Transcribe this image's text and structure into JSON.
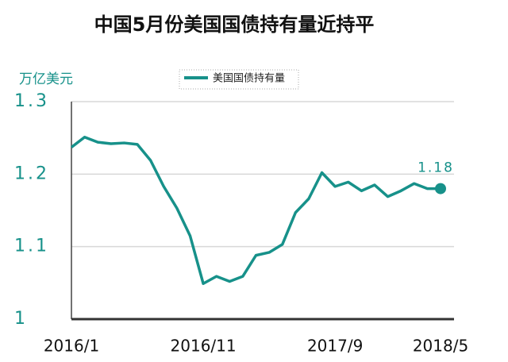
{
  "chart_data": {
    "type": "line",
    "title": "中国5月份美国国债持有量近持平",
    "y_label": "万亿美元",
    "categories": [
      "2016/1",
      null,
      null,
      null,
      null,
      null,
      null,
      null,
      null,
      null,
      "2016/11",
      null,
      null,
      null,
      null,
      null,
      null,
      null,
      null,
      null,
      "2017/9",
      null,
      null,
      null,
      null,
      null,
      null,
      null,
      "2018/5"
    ],
    "series": [
      {
        "name": "美国国债持有量",
        "color": "#17918a",
        "values": [
          1.237,
          1.251,
          1.244,
          1.242,
          1.243,
          1.241,
          1.219,
          1.183,
          1.153,
          1.115,
          1.049,
          1.059,
          1.052,
          1.059,
          1.088,
          1.092,
          1.103,
          1.147,
          1.166,
          1.202,
          1.183,
          1.189,
          1.177,
          1.185,
          1.169,
          1.177,
          1.187,
          1.18,
          1.18
        ]
      }
    ],
    "ylim": [
      1,
      1.3
    ],
    "yticks": [
      1,
      1.1,
      1.2,
      1.3
    ],
    "grid": true
  }
}
